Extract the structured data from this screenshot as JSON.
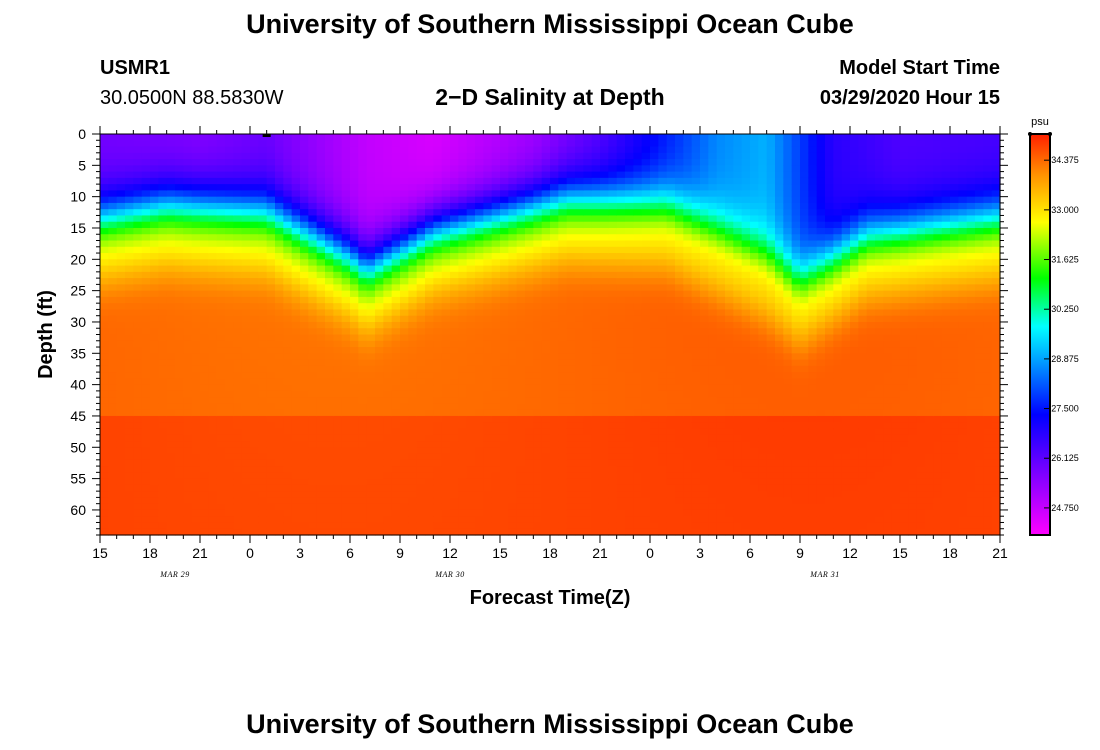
{
  "header": {
    "title_top": "University of Southern Mississippi Ocean Cube",
    "title_bottom": "University of Southern Mississippi Ocean Cube",
    "station_id": "USMR1",
    "coordinates": "30.0500N 88.5830W",
    "plot_title": "2−D Salinity at Depth",
    "model_label": "Model Start Time",
    "model_time": "03/29/2020 Hour 15"
  },
  "chart_data": {
    "type": "heatmap",
    "title": "2−D Salinity at Depth",
    "xlabel": "Forecast Time(Z)",
    "ylabel": "Depth (ft)",
    "x_range_hours": [
      0,
      54
    ],
    "y_range_ft": [
      0,
      64
    ],
    "x_ticks": [
      {
        "h": 0,
        "label": "15"
      },
      {
        "h": 3,
        "label": "18"
      },
      {
        "h": 6,
        "label": "21"
      },
      {
        "h": 9,
        "label": "0"
      },
      {
        "h": 12,
        "label": "3"
      },
      {
        "h": 15,
        "label": "6"
      },
      {
        "h": 18,
        "label": "9"
      },
      {
        "h": 21,
        "label": "12"
      },
      {
        "h": 24,
        "label": "15"
      },
      {
        "h": 27,
        "label": "18"
      },
      {
        "h": 30,
        "label": "21"
      },
      {
        "h": 33,
        "label": "0"
      },
      {
        "h": 36,
        "label": "3"
      },
      {
        "h": 39,
        "label": "6"
      },
      {
        "h": 42,
        "label": "9"
      },
      {
        "h": 45,
        "label": "12"
      },
      {
        "h": 48,
        "label": "15"
      },
      {
        "h": 51,
        "label": "18"
      },
      {
        "h": 54,
        "label": "21"
      }
    ],
    "y_ticks": [
      0,
      5,
      10,
      15,
      20,
      25,
      30,
      35,
      40,
      45,
      50,
      55,
      60
    ],
    "y_tick_labels": [
      "0",
      "5",
      "10",
      "15",
      "20",
      "25",
      "30",
      "35",
      "40",
      "45",
      "50",
      "55",
      "60"
    ],
    "date_labels": [
      {
        "h": 4.5,
        "label": "MAR  29"
      },
      {
        "h": 21,
        "label": "MAR  30"
      },
      {
        "h": 43.5,
        "label": "MAR  31"
      }
    ],
    "colorbar": {
      "unit": "psu",
      "min": 24.0,
      "max": 35.1,
      "labels": [
        "34.375",
        "33.000",
        "31.625",
        "30.250",
        "28.875",
        "27.500",
        "26.125",
        "24.750"
      ],
      "label_values": [
        34.375,
        33.0,
        31.625,
        30.25,
        28.875,
        27.5,
        26.125,
        24.75
      ]
    },
    "field_description": {
      "surface_salinity_approx": [
        {
          "h": 0,
          "psu": 25.8
        },
        {
          "h": 6,
          "psu": 25.6
        },
        {
          "h": 10,
          "psu": 25.9
        },
        {
          "h": 16,
          "psu": 24.8
        },
        {
          "h": 20,
          "psu": 24.5
        },
        {
          "h": 26,
          "psu": 25.2
        },
        {
          "h": 30,
          "psu": 26.2
        },
        {
          "h": 33,
          "psu": 27.2
        },
        {
          "h": 37,
          "psu": 28.6
        },
        {
          "h": 40,
          "psu": 29.0
        },
        {
          "h": 44,
          "psu": 26.8
        },
        {
          "h": 48,
          "psu": 26.3
        },
        {
          "h": 54,
          "psu": 26.4
        }
      ],
      "halocline_depth_ft_approx": [
        {
          "h": 0,
          "depth": 14
        },
        {
          "h": 4,
          "depth": 12
        },
        {
          "h": 10,
          "depth": 13
        },
        {
          "h": 15,
          "depth": 20
        },
        {
          "h": 16,
          "depth": 22
        },
        {
          "h": 20,
          "depth": 16
        },
        {
          "h": 28,
          "depth": 11
        },
        {
          "h": 34,
          "depth": 12
        },
        {
          "h": 40,
          "depth": 20
        },
        {
          "h": 42,
          "depth": 24
        },
        {
          "h": 46,
          "depth": 17
        },
        {
          "h": 54,
          "depth": 14
        }
      ],
      "deep_salinity_psu": 34.4
    }
  }
}
